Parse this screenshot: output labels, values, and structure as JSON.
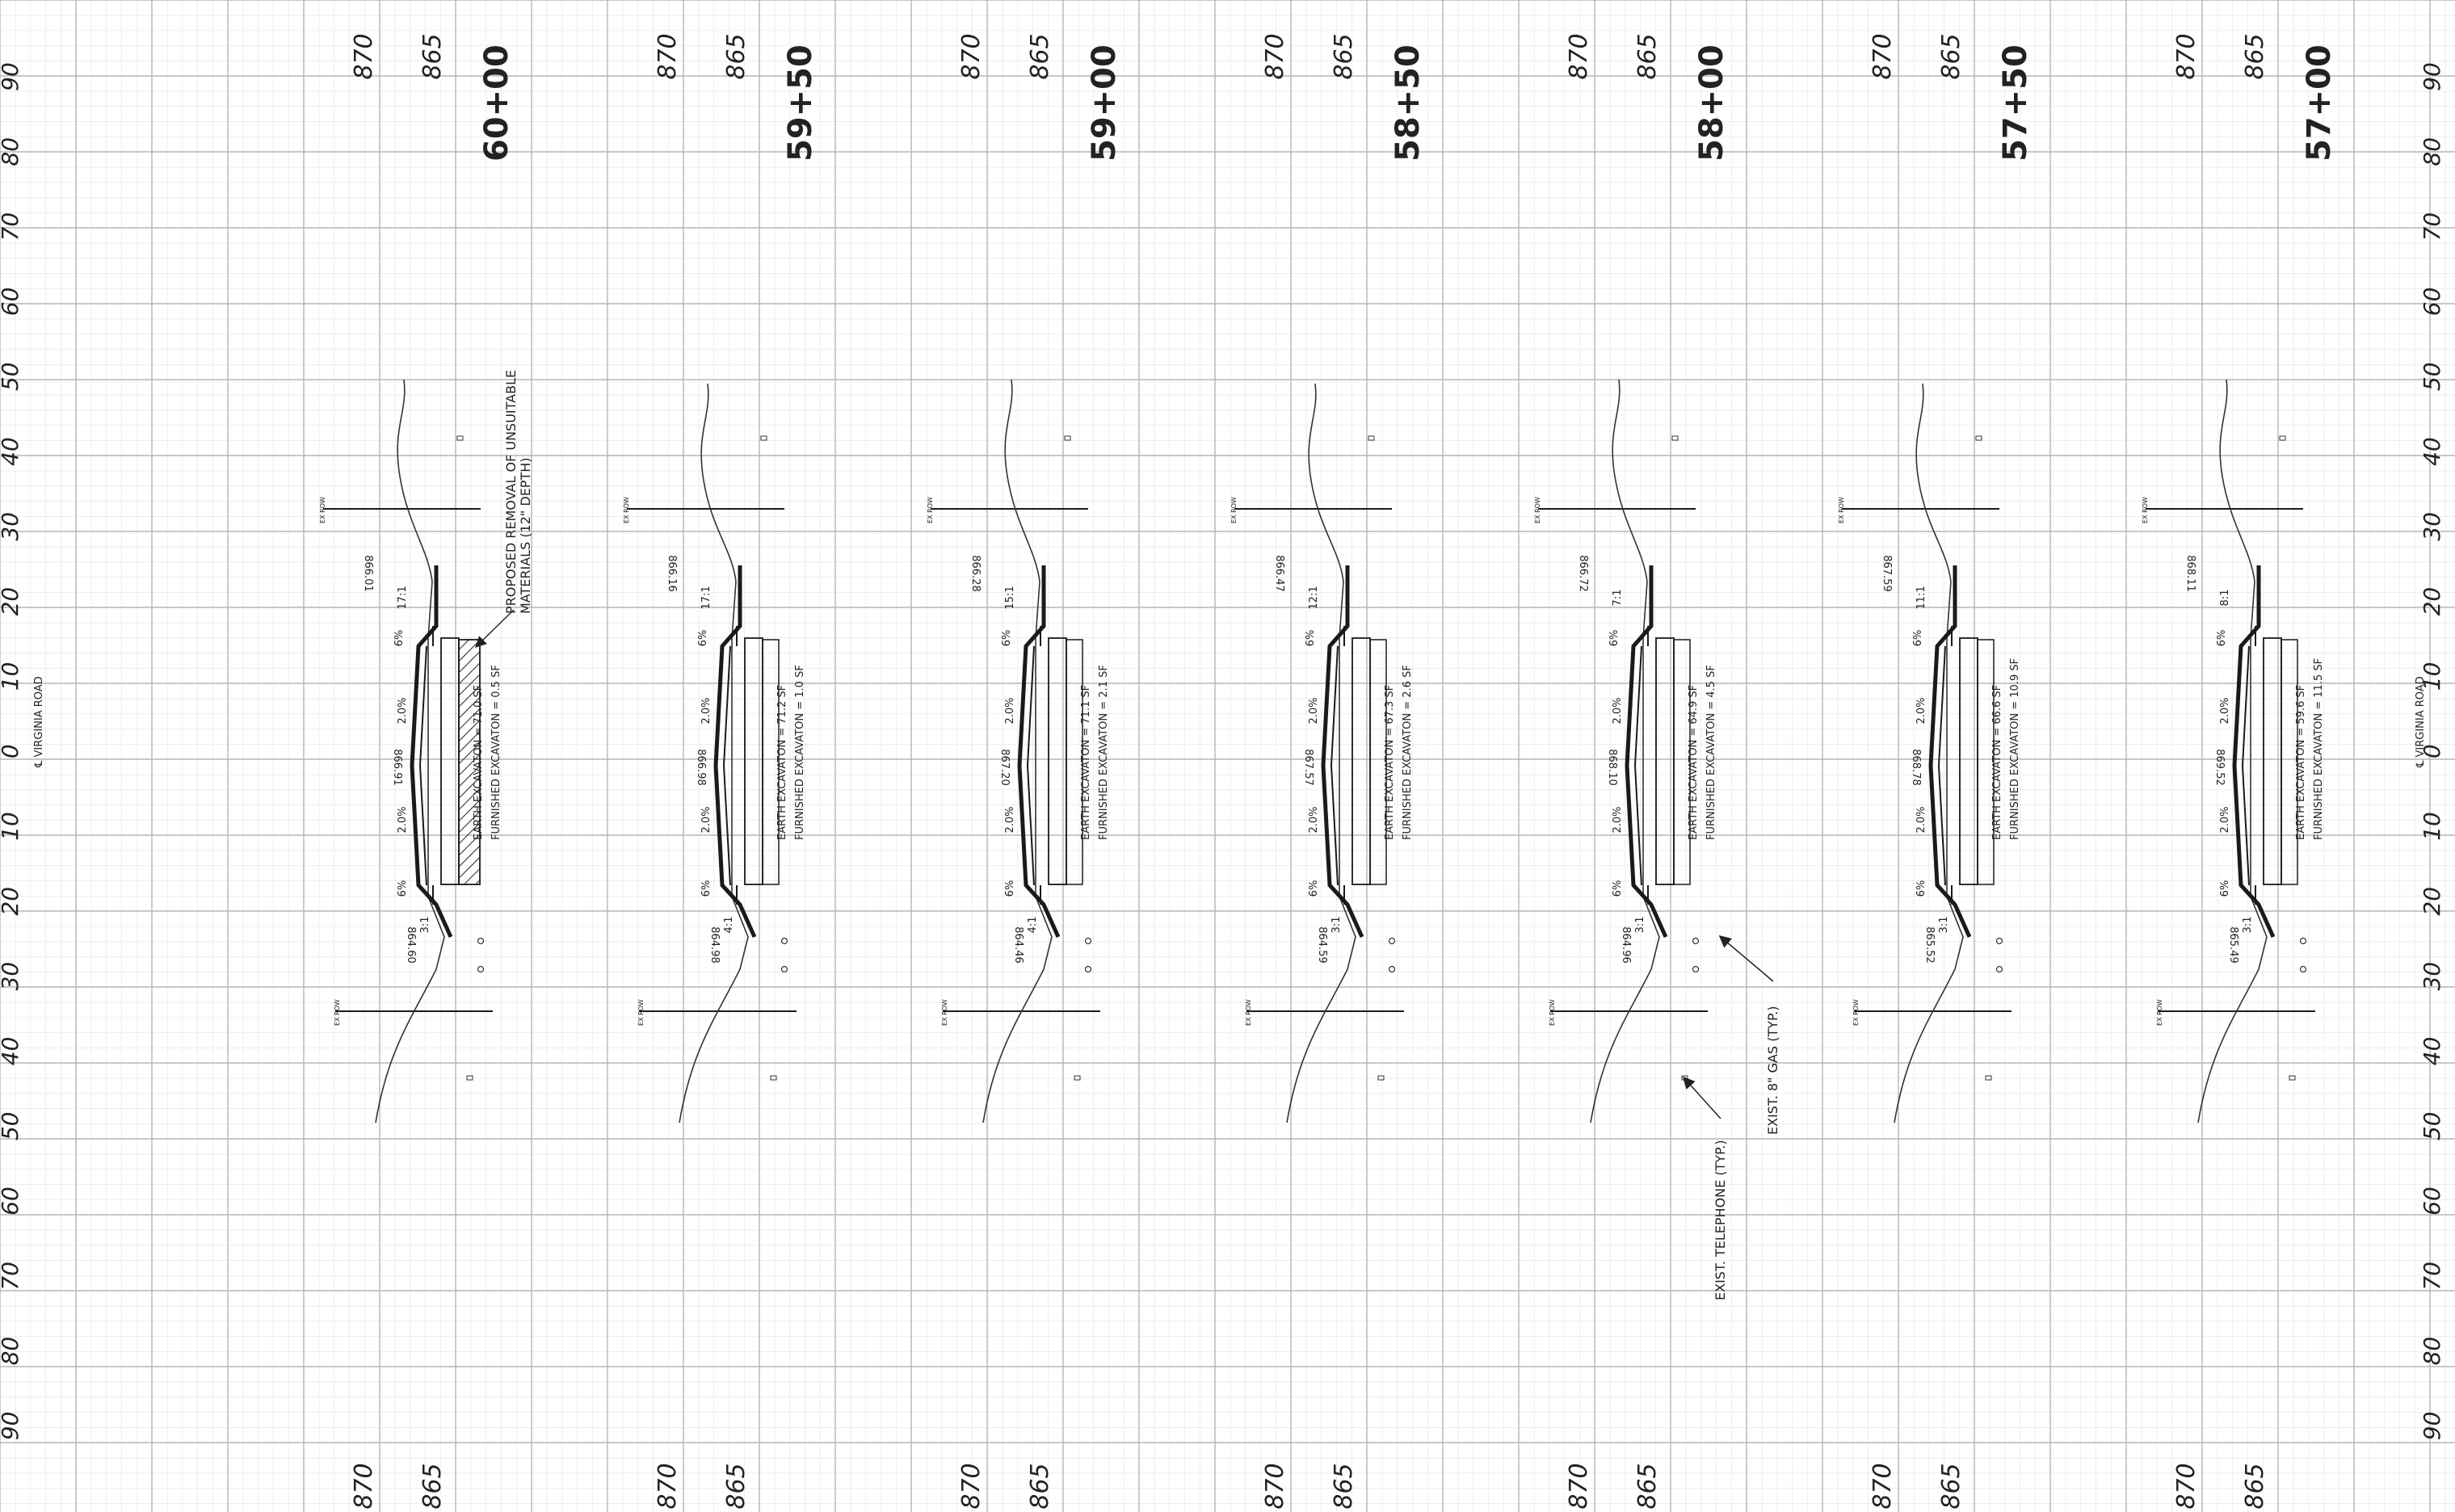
{
  "sheet": {
    "elevation_top": [
      "870",
      "865"
    ],
    "elevation_bottom": [
      "870",
      "865"
    ],
    "offset_labels": [
      "90",
      "80",
      "70",
      "60",
      "50",
      "40",
      "30",
      "20",
      "10",
      "0",
      "10",
      "20",
      "30",
      "40",
      "50",
      "60",
      "70",
      "80",
      "90"
    ],
    "centerline_label": "℄ VIRGINIA ROAD",
    "row_label": "EX ROW",
    "unsuitable_note": [
      "PROPOSED REMOVAL OF UNSUITABLE",
      "MATERIALS (12\" DEPTH)"
    ],
    "telephone_note": "EXIST. TELEPHONE (TYP.)",
    "gas_note": "EXIST. 8\" GAS (TYP.)",
    "line_color": "#1a1a1a",
    "grid_color": "#c8c8c8"
  },
  "sections": [
    {
      "station": "60+00",
      "earth": "EARTH EXCAVATON = 71.0 SF",
      "furnished": "FURNISHED EXCAVATON = 0.5 SF",
      "left_elev": "866.01",
      "center_elev": "866.91",
      "right_elev": "864.60",
      "left_slope": "17:1",
      "right_slope": "3:1",
      "cross_slope": "2.0%",
      "shoulder_slope": "6%"
    },
    {
      "station": "59+50",
      "earth": "EARTH EXCAVATON = 71.2 SF",
      "furnished": "FURNISHED EXCAVATON = 1.0 SF",
      "left_elev": "866.16",
      "center_elev": "866.98",
      "right_elev": "864.98",
      "left_slope": "17:1",
      "right_slope": "4:1",
      "cross_slope": "2.0%",
      "shoulder_slope": "6%"
    },
    {
      "station": "59+00",
      "earth": "EARTH EXCAVATON = 71.1 SF",
      "furnished": "FURNISHED EXCAVATON = 2.1 SF",
      "left_elev": "866.28",
      "center_elev": "867.20",
      "right_elev": "864.46",
      "left_slope": "15:1",
      "right_slope": "4:1",
      "cross_slope": "2.0%",
      "shoulder_slope": "6%"
    },
    {
      "station": "58+50",
      "earth": "EARTH EXCAVATON = 67.3 SF",
      "furnished": "FURNISHED EXCAVATON = 2.6 SF",
      "left_elev": "866.47",
      "center_elev": "867.57",
      "right_elev": "864.59",
      "left_slope": "12:1",
      "right_slope": "3:1",
      "cross_slope": "2.0%",
      "shoulder_slope": "6%"
    },
    {
      "station": "58+00",
      "earth": "EARTH EXCAVATON = 64.9 SF",
      "furnished": "FURNISHED EXCAVATON = 4.5 SF",
      "left_elev": "866.72",
      "center_elev": "868.10",
      "right_elev": "864.96",
      "left_slope": "7:1",
      "right_slope": "3:1",
      "cross_slope": "2.0%",
      "shoulder_slope": "6%"
    },
    {
      "station": "57+50",
      "earth": "EARTH EXCAVATON = 66.6 SF",
      "furnished": "FURNISHED EXCAVATON = 10.9 SF",
      "left_elev": "867.59",
      "center_elev": "868.78",
      "right_elev": "865.52",
      "left_slope": "11:1",
      "right_slope": "3:1",
      "cross_slope": "2.0%",
      "shoulder_slope": "6%"
    },
    {
      "station": "57+00",
      "earth": "EARTH EXCAVATON = 59.6 SF",
      "furnished": "FURNISHED EXCAVATON = 11.5 SF",
      "left_elev": "868.11",
      "center_elev": "869.52",
      "right_elev": "865.49",
      "left_slope": "8:1",
      "right_slope": "3:1",
      "cross_slope": "2.0%",
      "shoulder_slope": "6%"
    }
  ]
}
